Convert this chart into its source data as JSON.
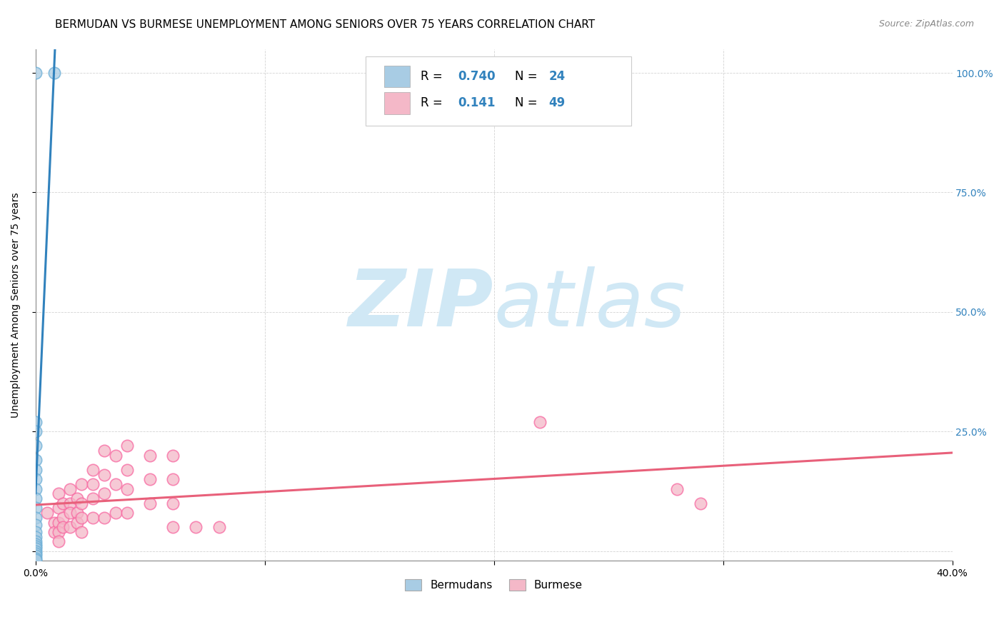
{
  "title": "BERMUDAN VS BURMESE UNEMPLOYMENT AMONG SENIORS OVER 75 YEARS CORRELATION CHART",
  "source": "Source: ZipAtlas.com",
  "ylabel": "Unemployment Among Seniors over 75 years",
  "xlim": [
    0.0,
    0.4
  ],
  "ylim": [
    -0.02,
    1.05
  ],
  "bermudan_color": "#a8cce4",
  "burmese_color": "#f4b8c8",
  "bermudan_edge_color": "#6baed6",
  "burmese_edge_color": "#f768a1",
  "bermudan_line_color": "#3182bd",
  "burmese_line_color": "#e8607a",
  "bermudan_R": 0.74,
  "bermudan_N": 24,
  "burmese_R": 0.141,
  "burmese_N": 49,
  "watermark": "ZIPatlas",
  "watermark_color": "#d0e8f5",
  "title_fontsize": 11,
  "source_fontsize": 9,
  "axis_label_fontsize": 10,
  "right_tick_color": "#3182bd",
  "legend_R_N_color": "#3182bd",
  "bermudan_scatter": [
    [
      0.0,
      1.0
    ],
    [
      0.008,
      1.0
    ],
    [
      0.0,
      0.27
    ],
    [
      0.0,
      0.25
    ],
    [
      0.0,
      0.22
    ],
    [
      0.0,
      0.19
    ],
    [
      0.0,
      0.17
    ],
    [
      0.0,
      0.15
    ],
    [
      0.0,
      0.13
    ],
    [
      0.0,
      0.11
    ],
    [
      0.0,
      0.09
    ],
    [
      0.0,
      0.07
    ],
    [
      0.0,
      0.055
    ],
    [
      0.0,
      0.04
    ],
    [
      0.0,
      0.03
    ],
    [
      0.0,
      0.02
    ],
    [
      0.0,
      0.015
    ],
    [
      0.0,
      0.01
    ],
    [
      0.0,
      0.005
    ],
    [
      0.0,
      0.0
    ],
    [
      0.0,
      -0.005
    ],
    [
      0.0,
      -0.01
    ],
    [
      0.0,
      -0.015
    ],
    [
      0.0,
      -0.018
    ]
  ],
  "burmese_scatter": [
    [
      0.005,
      0.08
    ],
    [
      0.008,
      0.06
    ],
    [
      0.008,
      0.04
    ],
    [
      0.01,
      0.12
    ],
    [
      0.01,
      0.09
    ],
    [
      0.01,
      0.06
    ],
    [
      0.01,
      0.04
    ],
    [
      0.01,
      0.02
    ],
    [
      0.012,
      0.1
    ],
    [
      0.012,
      0.07
    ],
    [
      0.012,
      0.05
    ],
    [
      0.015,
      0.13
    ],
    [
      0.015,
      0.1
    ],
    [
      0.015,
      0.08
    ],
    [
      0.015,
      0.05
    ],
    [
      0.018,
      0.11
    ],
    [
      0.018,
      0.08
    ],
    [
      0.018,
      0.06
    ],
    [
      0.02,
      0.14
    ],
    [
      0.02,
      0.1
    ],
    [
      0.02,
      0.07
    ],
    [
      0.02,
      0.04
    ],
    [
      0.025,
      0.17
    ],
    [
      0.025,
      0.14
    ],
    [
      0.025,
      0.11
    ],
    [
      0.025,
      0.07
    ],
    [
      0.03,
      0.21
    ],
    [
      0.03,
      0.16
    ],
    [
      0.03,
      0.12
    ],
    [
      0.03,
      0.07
    ],
    [
      0.035,
      0.2
    ],
    [
      0.035,
      0.14
    ],
    [
      0.035,
      0.08
    ],
    [
      0.04,
      0.22
    ],
    [
      0.04,
      0.17
    ],
    [
      0.04,
      0.13
    ],
    [
      0.04,
      0.08
    ],
    [
      0.05,
      0.2
    ],
    [
      0.05,
      0.15
    ],
    [
      0.05,
      0.1
    ],
    [
      0.06,
      0.2
    ],
    [
      0.06,
      0.15
    ],
    [
      0.06,
      0.1
    ],
    [
      0.06,
      0.05
    ],
    [
      0.07,
      0.05
    ],
    [
      0.08,
      0.05
    ],
    [
      0.22,
      0.27
    ],
    [
      0.28,
      0.13
    ],
    [
      0.29,
      0.1
    ]
  ]
}
